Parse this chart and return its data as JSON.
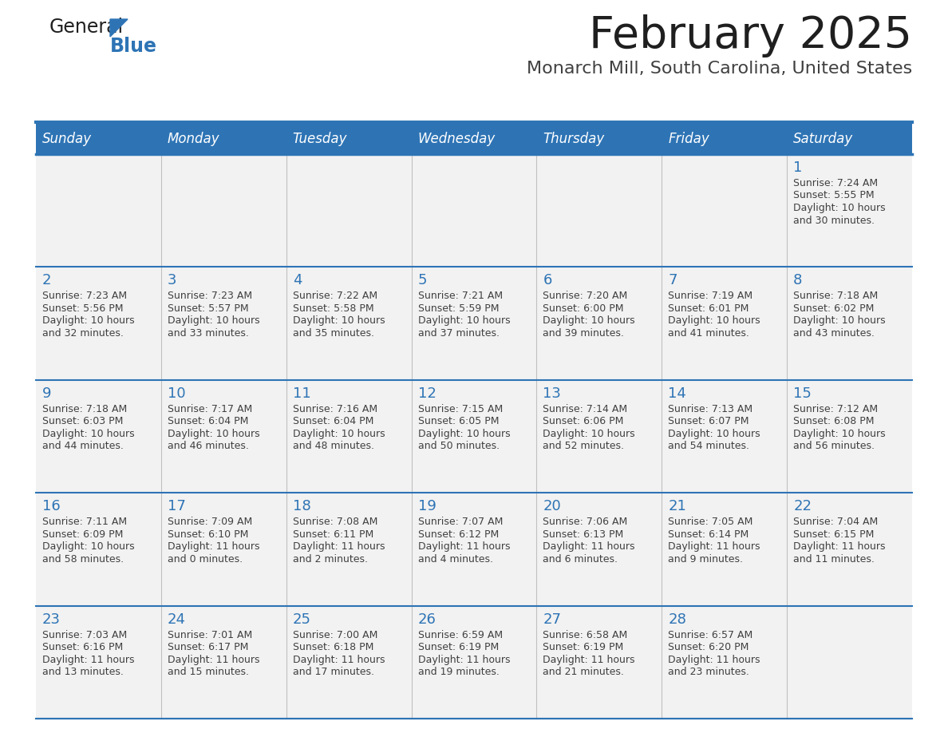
{
  "title": "February 2025",
  "subtitle": "Monarch Mill, South Carolina, United States",
  "header_bg": "#2E74B5",
  "header_text_color": "#FFFFFF",
  "cell_bg": "#F2F2F2",
  "border_color": "#2E74B5",
  "day_names": [
    "Sunday",
    "Monday",
    "Tuesday",
    "Wednesday",
    "Thursday",
    "Friday",
    "Saturday"
  ],
  "title_color": "#1F1F1F",
  "subtitle_color": "#404040",
  "day_num_color": "#2E74B5",
  "cell_text_color": "#404040",
  "calendar": [
    [
      null,
      null,
      null,
      null,
      null,
      null,
      1
    ],
    [
      2,
      3,
      4,
      5,
      6,
      7,
      8
    ],
    [
      9,
      10,
      11,
      12,
      13,
      14,
      15
    ],
    [
      16,
      17,
      18,
      19,
      20,
      21,
      22
    ],
    [
      23,
      24,
      25,
      26,
      27,
      28,
      null
    ]
  ],
  "cell_data": {
    "1": {
      "sunrise": "7:24 AM",
      "sunset": "5:55 PM",
      "daylight": "10 hours and 30 minutes."
    },
    "2": {
      "sunrise": "7:23 AM",
      "sunset": "5:56 PM",
      "daylight": "10 hours and 32 minutes."
    },
    "3": {
      "sunrise": "7:23 AM",
      "sunset": "5:57 PM",
      "daylight": "10 hours and 33 minutes."
    },
    "4": {
      "sunrise": "7:22 AM",
      "sunset": "5:58 PM",
      "daylight": "10 hours and 35 minutes."
    },
    "5": {
      "sunrise": "7:21 AM",
      "sunset": "5:59 PM",
      "daylight": "10 hours and 37 minutes."
    },
    "6": {
      "sunrise": "7:20 AM",
      "sunset": "6:00 PM",
      "daylight": "10 hours and 39 minutes."
    },
    "7": {
      "sunrise": "7:19 AM",
      "sunset": "6:01 PM",
      "daylight": "10 hours and 41 minutes."
    },
    "8": {
      "sunrise": "7:18 AM",
      "sunset": "6:02 PM",
      "daylight": "10 hours and 43 minutes."
    },
    "9": {
      "sunrise": "7:18 AM",
      "sunset": "6:03 PM",
      "daylight": "10 hours and 44 minutes."
    },
    "10": {
      "sunrise": "7:17 AM",
      "sunset": "6:04 PM",
      "daylight": "10 hours and 46 minutes."
    },
    "11": {
      "sunrise": "7:16 AM",
      "sunset": "6:04 PM",
      "daylight": "10 hours and 48 minutes."
    },
    "12": {
      "sunrise": "7:15 AM",
      "sunset": "6:05 PM",
      "daylight": "10 hours and 50 minutes."
    },
    "13": {
      "sunrise": "7:14 AM",
      "sunset": "6:06 PM",
      "daylight": "10 hours and 52 minutes."
    },
    "14": {
      "sunrise": "7:13 AM",
      "sunset": "6:07 PM",
      "daylight": "10 hours and 54 minutes."
    },
    "15": {
      "sunrise": "7:12 AM",
      "sunset": "6:08 PM",
      "daylight": "10 hours and 56 minutes."
    },
    "16": {
      "sunrise": "7:11 AM",
      "sunset": "6:09 PM",
      "daylight": "10 hours and 58 minutes."
    },
    "17": {
      "sunrise": "7:09 AM",
      "sunset": "6:10 PM",
      "daylight": "11 hours and 0 minutes."
    },
    "18": {
      "sunrise": "7:08 AM",
      "sunset": "6:11 PM",
      "daylight": "11 hours and 2 minutes."
    },
    "19": {
      "sunrise": "7:07 AM",
      "sunset": "6:12 PM",
      "daylight": "11 hours and 4 minutes."
    },
    "20": {
      "sunrise": "7:06 AM",
      "sunset": "6:13 PM",
      "daylight": "11 hours and 6 minutes."
    },
    "21": {
      "sunrise": "7:05 AM",
      "sunset": "6:14 PM",
      "daylight": "11 hours and 9 minutes."
    },
    "22": {
      "sunrise": "7:04 AM",
      "sunset": "6:15 PM",
      "daylight": "11 hours and 11 minutes."
    },
    "23": {
      "sunrise": "7:03 AM",
      "sunset": "6:16 PM",
      "daylight": "11 hours and 13 minutes."
    },
    "24": {
      "sunrise": "7:01 AM",
      "sunset": "6:17 PM",
      "daylight": "11 hours and 15 minutes."
    },
    "25": {
      "sunrise": "7:00 AM",
      "sunset": "6:18 PM",
      "daylight": "11 hours and 17 minutes."
    },
    "26": {
      "sunrise": "6:59 AM",
      "sunset": "6:19 PM",
      "daylight": "11 hours and 19 minutes."
    },
    "27": {
      "sunrise": "6:58 AM",
      "sunset": "6:19 PM",
      "daylight": "11 hours and 21 minutes."
    },
    "28": {
      "sunrise": "6:57 AM",
      "sunset": "6:20 PM",
      "daylight": "11 hours and 23 minutes."
    }
  },
  "logo_color_general": "#1F1F1F",
  "logo_color_blue": "#2E74B5",
  "logo_triangle_color": "#2E74B5",
  "fig_width": 11.88,
  "fig_height": 9.18,
  "dpi": 100
}
